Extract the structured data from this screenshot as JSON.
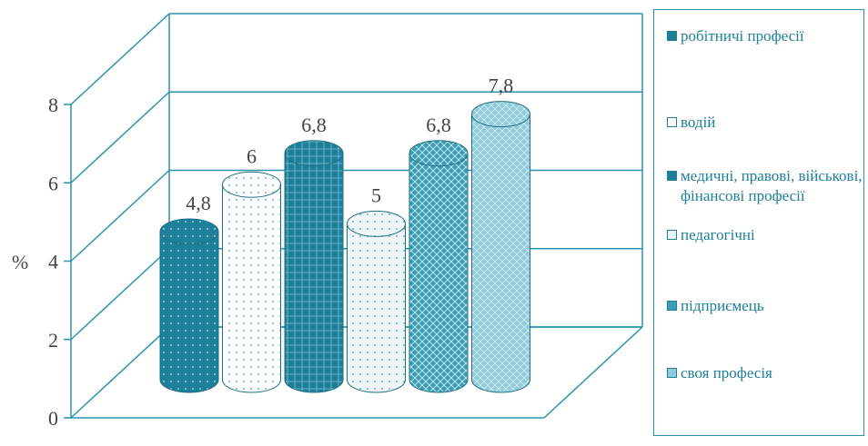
{
  "chart_data": {
    "type": "bar",
    "style": "3d-cylinder",
    "series": [
      {
        "name": "робітничі професії",
        "value": 4.8,
        "label": "4,8",
        "fill": "#1d7f98",
        "pattern": "dots-light"
      },
      {
        "name": "водій",
        "value": 6,
        "label": "6",
        "fill": "#ffffff",
        "pattern": "dots-dark"
      },
      {
        "name": "медичні, правові, військові, фінансові професії",
        "value": 6.8,
        "label": "6,8",
        "fill": "#1d7f98",
        "pattern": "grid-light"
      },
      {
        "name": "педагогічні",
        "value": 5,
        "label": "5",
        "fill": "#eef6f8",
        "pattern": "dots-dark"
      },
      {
        "name": "підприємець",
        "value": 6.8,
        "label": "6,8",
        "fill": "#3a9cb5",
        "pattern": "cross-light"
      },
      {
        "name": "своя професія",
        "value": 7.8,
        "label": "7,8",
        "fill": "#8fcbdb",
        "pattern": "cross-light"
      }
    ],
    "ylabel": "%",
    "ylim": [
      0,
      8
    ],
    "yticks": [
      0,
      2,
      4,
      6,
      8
    ],
    "legend_position": "right",
    "grid": true
  },
  "colors": {
    "axis": "#2a93ad",
    "text": "#1d7f98",
    "label_text": "#444444"
  }
}
